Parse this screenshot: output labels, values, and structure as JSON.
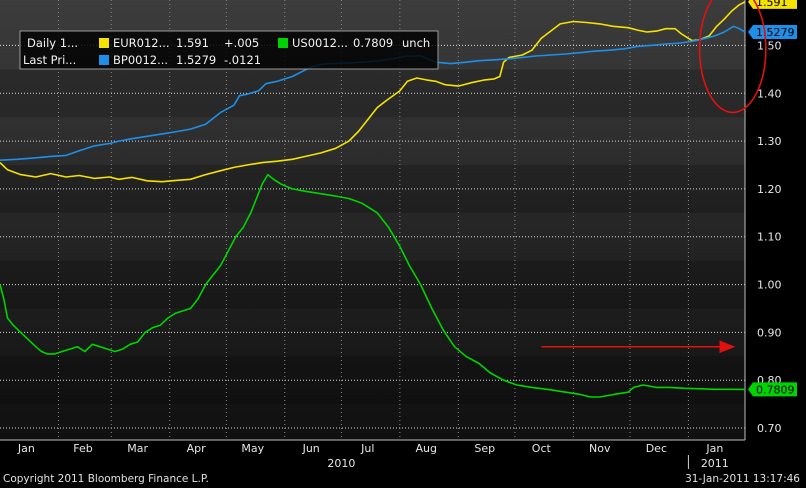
{
  "chart_data": {
    "type": "line",
    "x_unit": "date",
    "x_range": [
      "2010-01-01",
      "2011-01-31"
    ],
    "yticks": [
      0.7,
      0.8,
      0.9,
      1.0,
      1.1,
      1.2,
      1.3,
      1.4,
      1.5
    ],
    "ytick_labels": [
      "0.70",
      "0.80",
      "0.90",
      "1.00",
      "1.10",
      "1.20",
      "1.30",
      "1.40",
      "1.50"
    ],
    "ylim": [
      0.675,
      1.595
    ],
    "grid": true,
    "xticks": [
      {
        "label": "Jan",
        "date": "2010-01-15"
      },
      {
        "label": "Feb",
        "date": "2010-02-14"
      },
      {
        "label": "Mar",
        "date": "2010-03-15"
      },
      {
        "label": "Apr",
        "date": "2010-04-15"
      },
      {
        "label": "May",
        "date": "2010-05-15"
      },
      {
        "label": "Jun",
        "date": "2010-06-15"
      },
      {
        "label": "Jul",
        "date": "2010-07-15"
      },
      {
        "label": "Aug",
        "date": "2010-08-15"
      },
      {
        "label": "Sep",
        "date": "2010-09-15"
      },
      {
        "label": "Oct",
        "date": "2010-10-15"
      },
      {
        "label": "Nov",
        "date": "2010-11-15"
      },
      {
        "label": "Dec",
        "date": "2010-12-15"
      },
      {
        "label": "Jan",
        "date": "2011-01-15"
      }
    ],
    "year_labels": [
      {
        "label": "2010",
        "date": "2010-07-01"
      },
      {
        "label": "2011",
        "date": "2011-01-15"
      }
    ],
    "legend": {
      "row_labels": [
        "Daily 1...",
        "Last Pri..."
      ],
      "entries": [
        {
          "name": "EUR012...",
          "last": "1.591",
          "change": "+.005",
          "color": "#f5e200"
        },
        {
          "name": "BP0012...",
          "last": "1.5279",
          "change": "-.0121",
          "color": "#1e8fe8"
        },
        {
          "name": "US0012...",
          "last": "0.7809",
          "change": "unch",
          "color": "#00d400"
        }
      ]
    },
    "series": [
      {
        "key": "eur",
        "color": "#f5e200",
        "end_label": "1.591",
        "points": [
          [
            "2010-01-01",
            1.255
          ],
          [
            "2010-01-05",
            1.24
          ],
          [
            "2010-01-12",
            1.23
          ],
          [
            "2010-01-20",
            1.225
          ],
          [
            "2010-01-28",
            1.232
          ],
          [
            "2010-02-05",
            1.225
          ],
          [
            "2010-02-12",
            1.228
          ],
          [
            "2010-02-20",
            1.222
          ],
          [
            "2010-02-28",
            1.225
          ],
          [
            "2010-03-05",
            1.22
          ],
          [
            "2010-03-12",
            1.224
          ],
          [
            "2010-03-20",
            1.217
          ],
          [
            "2010-03-28",
            1.215
          ],
          [
            "2010-04-05",
            1.218
          ],
          [
            "2010-04-12",
            1.22
          ],
          [
            "2010-04-20",
            1.23
          ],
          [
            "2010-04-28",
            1.238
          ],
          [
            "2010-05-05",
            1.245
          ],
          [
            "2010-05-12",
            1.25
          ],
          [
            "2010-05-20",
            1.255
          ],
          [
            "2010-05-28",
            1.258
          ],
          [
            "2010-06-05",
            1.262
          ],
          [
            "2010-06-12",
            1.268
          ],
          [
            "2010-06-20",
            1.275
          ],
          [
            "2010-06-28",
            1.285
          ],
          [
            "2010-07-05",
            1.3
          ],
          [
            "2010-07-10",
            1.32
          ],
          [
            "2010-07-15",
            1.345
          ],
          [
            "2010-07-20",
            1.37
          ],
          [
            "2010-07-25",
            1.385
          ],
          [
            "2010-08-01",
            1.405
          ],
          [
            "2010-08-05",
            1.425
          ],
          [
            "2010-08-10",
            1.432
          ],
          [
            "2010-08-15",
            1.428
          ],
          [
            "2010-08-20",
            1.425
          ],
          [
            "2010-08-25",
            1.418
          ],
          [
            "2010-09-01",
            1.415
          ],
          [
            "2010-09-08",
            1.422
          ],
          [
            "2010-09-15",
            1.428
          ],
          [
            "2010-09-20",
            1.43
          ],
          [
            "2010-09-23",
            1.435
          ],
          [
            "2010-09-25",
            1.465
          ],
          [
            "2010-09-28",
            1.475
          ],
          [
            "2010-10-05",
            1.48
          ],
          [
            "2010-10-10",
            1.49
          ],
          [
            "2010-10-15",
            1.515
          ],
          [
            "2010-10-20",
            1.53
          ],
          [
            "2010-10-25",
            1.545
          ],
          [
            "2010-11-01",
            1.55
          ],
          [
            "2010-11-08",
            1.548
          ],
          [
            "2010-11-15",
            1.545
          ],
          [
            "2010-11-22",
            1.54
          ],
          [
            "2010-11-30",
            1.537
          ],
          [
            "2010-12-05",
            1.532
          ],
          [
            "2010-12-10",
            1.528
          ],
          [
            "2010-12-15",
            1.53
          ],
          [
            "2010-12-20",
            1.535
          ],
          [
            "2010-12-25",
            1.535
          ],
          [
            "2010-12-28",
            1.525
          ],
          [
            "2011-01-03",
            1.51
          ],
          [
            "2011-01-07",
            1.512
          ],
          [
            "2011-01-12",
            1.52
          ],
          [
            "2011-01-16",
            1.54
          ],
          [
            "2011-01-20",
            1.555
          ],
          [
            "2011-01-24",
            1.572
          ],
          [
            "2011-01-28",
            1.585
          ],
          [
            "2011-01-31",
            1.591
          ]
        ]
      },
      {
        "key": "gbp",
        "color": "#1e8fe8",
        "end_label": "1.5279",
        "points": [
          [
            "2010-01-01",
            1.26
          ],
          [
            "2010-01-10",
            1.262
          ],
          [
            "2010-01-20",
            1.265
          ],
          [
            "2010-01-28",
            1.268
          ],
          [
            "2010-02-05",
            1.27
          ],
          [
            "2010-02-12",
            1.28
          ],
          [
            "2010-02-20",
            1.29
          ],
          [
            "2010-02-28",
            1.295
          ],
          [
            "2010-03-05",
            1.3
          ],
          [
            "2010-03-12",
            1.305
          ],
          [
            "2010-03-20",
            1.31
          ],
          [
            "2010-03-28",
            1.315
          ],
          [
            "2010-04-05",
            1.32
          ],
          [
            "2010-04-12",
            1.325
          ],
          [
            "2010-04-20",
            1.335
          ],
          [
            "2010-04-28",
            1.36
          ],
          [
            "2010-05-05",
            1.375
          ],
          [
            "2010-05-08",
            1.395
          ],
          [
            "2010-05-12",
            1.398
          ],
          [
            "2010-05-18",
            1.405
          ],
          [
            "2010-05-22",
            1.42
          ],
          [
            "2010-05-28",
            1.425
          ],
          [
            "2010-06-05",
            1.435
          ],
          [
            "2010-06-10",
            1.445
          ],
          [
            "2010-06-15",
            1.455
          ],
          [
            "2010-06-20",
            1.46
          ],
          [
            "2010-06-25",
            1.462
          ],
          [
            "2010-07-05",
            1.463
          ],
          [
            "2010-07-12",
            1.465
          ],
          [
            "2010-07-20",
            1.467
          ],
          [
            "2010-07-28",
            1.472
          ],
          [
            "2010-08-05",
            1.478
          ],
          [
            "2010-08-12",
            1.478
          ],
          [
            "2010-08-16",
            1.472
          ],
          [
            "2010-08-20",
            1.465
          ],
          [
            "2010-08-28",
            1.462
          ],
          [
            "2010-09-05",
            1.465
          ],
          [
            "2010-09-12",
            1.468
          ],
          [
            "2010-09-20",
            1.47
          ],
          [
            "2010-09-28",
            1.472
          ],
          [
            "2010-10-05",
            1.475
          ],
          [
            "2010-10-12",
            1.478
          ],
          [
            "2010-10-20",
            1.48
          ],
          [
            "2010-10-28",
            1.482
          ],
          [
            "2010-11-05",
            1.485
          ],
          [
            "2010-11-12",
            1.488
          ],
          [
            "2010-11-20",
            1.49
          ],
          [
            "2010-11-28",
            1.493
          ],
          [
            "2010-12-05",
            1.498
          ],
          [
            "2010-12-12",
            1.5
          ],
          [
            "2010-12-20",
            1.503
          ],
          [
            "2010-12-28",
            1.505
          ],
          [
            "2011-01-05",
            1.51
          ],
          [
            "2011-01-10",
            1.515
          ],
          [
            "2011-01-15",
            1.52
          ],
          [
            "2011-01-20",
            1.528
          ],
          [
            "2011-01-25",
            1.54
          ],
          [
            "2011-01-28",
            1.535
          ],
          [
            "2011-01-31",
            1.528
          ]
        ]
      },
      {
        "key": "usd",
        "color": "#00d400",
        "end_label": "0.7809",
        "points": [
          [
            "2010-01-01",
            1.0
          ],
          [
            "2010-01-03",
            0.97
          ],
          [
            "2010-01-05",
            0.93
          ],
          [
            "2010-01-08",
            0.915
          ],
          [
            "2010-01-12",
            0.9
          ],
          [
            "2010-01-16",
            0.885
          ],
          [
            "2010-01-20",
            0.87
          ],
          [
            "2010-01-23",
            0.86
          ],
          [
            "2010-01-26",
            0.855
          ],
          [
            "2010-01-30",
            0.855
          ],
          [
            "2010-02-03",
            0.86
          ],
          [
            "2010-02-07",
            0.865
          ],
          [
            "2010-02-11",
            0.87
          ],
          [
            "2010-02-15",
            0.86
          ],
          [
            "2010-02-19",
            0.875
          ],
          [
            "2010-02-23",
            0.87
          ],
          [
            "2010-02-27",
            0.865
          ],
          [
            "2010-03-03",
            0.86
          ],
          [
            "2010-03-07",
            0.865
          ],
          [
            "2010-03-11",
            0.875
          ],
          [
            "2010-03-15",
            0.88
          ],
          [
            "2010-03-19",
            0.9
          ],
          [
            "2010-03-23",
            0.91
          ],
          [
            "2010-03-27",
            0.915
          ],
          [
            "2010-03-31",
            0.93
          ],
          [
            "2010-04-04",
            0.94
          ],
          [
            "2010-04-08",
            0.945
          ],
          [
            "2010-04-12",
            0.95
          ],
          [
            "2010-04-16",
            0.97
          ],
          [
            "2010-04-20",
            1.0
          ],
          [
            "2010-04-24",
            1.02
          ],
          [
            "2010-04-28",
            1.04
          ],
          [
            "2010-05-02",
            1.07
          ],
          [
            "2010-05-06",
            1.1
          ],
          [
            "2010-05-10",
            1.12
          ],
          [
            "2010-05-14",
            1.15
          ],
          [
            "2010-05-17",
            1.18
          ],
          [
            "2010-05-20",
            1.21
          ],
          [
            "2010-05-23",
            1.23
          ],
          [
            "2010-05-26",
            1.22
          ],
          [
            "2010-05-30",
            1.21
          ],
          [
            "2010-06-05",
            1.2
          ],
          [
            "2010-06-12",
            1.195
          ],
          [
            "2010-06-20",
            1.19
          ],
          [
            "2010-06-28",
            1.185
          ],
          [
            "2010-07-05",
            1.18
          ],
          [
            "2010-07-12",
            1.17
          ],
          [
            "2010-07-20",
            1.15
          ],
          [
            "2010-07-26",
            1.12
          ],
          [
            "2010-08-01",
            1.08
          ],
          [
            "2010-08-06",
            1.04
          ],
          [
            "2010-08-12",
            1.0
          ],
          [
            "2010-08-18",
            0.95
          ],
          [
            "2010-08-24",
            0.905
          ],
          [
            "2010-08-30",
            0.87
          ],
          [
            "2010-09-05",
            0.85
          ],
          [
            "2010-09-12",
            0.835
          ],
          [
            "2010-09-18",
            0.815
          ],
          [
            "2010-09-25",
            0.8
          ],
          [
            "2010-10-02",
            0.79
          ],
          [
            "2010-10-10",
            0.785
          ],
          [
            "2010-10-20",
            0.78
          ],
          [
            "2010-10-28",
            0.775
          ],
          [
            "2010-11-05",
            0.77
          ],
          [
            "2010-11-10",
            0.765
          ],
          [
            "2010-11-15",
            0.765
          ],
          [
            "2010-11-22",
            0.77
          ],
          [
            "2010-11-30",
            0.775
          ],
          [
            "2010-12-03",
            0.785
          ],
          [
            "2010-12-08",
            0.79
          ],
          [
            "2010-12-15",
            0.785
          ],
          [
            "2010-12-22",
            0.785
          ],
          [
            "2010-12-30",
            0.783
          ],
          [
            "2011-01-08",
            0.782
          ],
          [
            "2011-01-15",
            0.781
          ],
          [
            "2011-01-22",
            0.781
          ],
          [
            "2011-01-31",
            0.7809
          ]
        ]
      }
    ],
    "annotations": [
      {
        "type": "ellipse",
        "color": "#e31010"
      },
      {
        "type": "arrow",
        "color": "#e31010"
      }
    ]
  },
  "footer": {
    "copyright": "Copyright 2011 Bloomberg Finance L.P.",
    "timestamp": "31-Jan-2011 13:17:46"
  }
}
